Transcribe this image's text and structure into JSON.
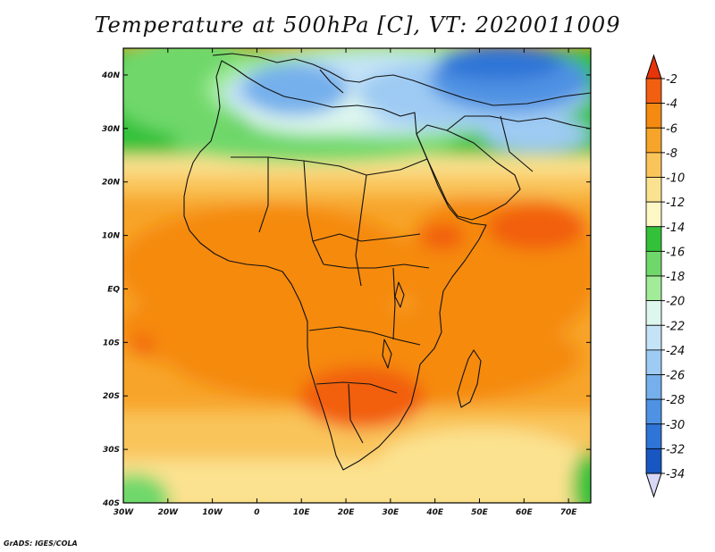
{
  "title": "Temperature at 500hPa [C], VT: 2020011009",
  "credit": "GrADS: IGES/COLA",
  "chart_data": {
    "type": "heatmap",
    "variable": "Temperature at 500hPa",
    "units": "C",
    "valid_time": "2020011009",
    "lon_range": [
      -30,
      75
    ],
    "lat_range": [
      -40,
      45
    ],
    "x_ticks": [
      "30W",
      "20W",
      "10W",
      "0",
      "10E",
      "20E",
      "30E",
      "40E",
      "50E",
      "60E",
      "70E"
    ],
    "x_tick_values": [
      -30,
      -20,
      -10,
      0,
      10,
      20,
      30,
      40,
      50,
      60,
      70
    ],
    "y_ticks": [
      "40N",
      "30N",
      "20N",
      "10N",
      "EQ",
      "10S",
      "20S",
      "30S",
      "40S"
    ],
    "y_tick_values": [
      40,
      30,
      20,
      10,
      0,
      -10,
      -20,
      -30,
      -40
    ],
    "colorbar": {
      "levels": [
        "-2",
        "-4",
        "-6",
        "-8",
        "-10",
        "-12",
        "-14",
        "-16",
        "-18",
        "-20",
        "-22",
        "-24",
        "-26",
        "-28",
        "-30",
        "-32",
        "-34"
      ],
      "colors": [
        "#e8340a",
        "#f25f10",
        "#f58a10",
        "#f7a42a",
        "#f9c45a",
        "#fbe290",
        "#fdf7c6",
        "#33c13a",
        "#70d86a",
        "#a2eb98",
        "#ddf6ee",
        "#c5e3f7",
        "#9ecbf3",
        "#76b0ec",
        "#4f92e3",
        "#2f74d7",
        "#1856c1",
        "#0a2f86"
      ]
    }
  }
}
